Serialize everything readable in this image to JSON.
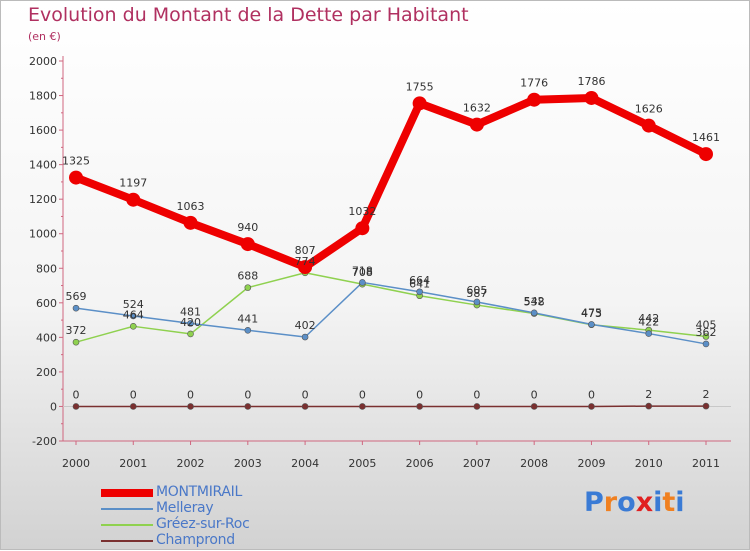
{
  "title": "Evolution du Montant de la Dette par Habitant",
  "subtitle": "(en €)",
  "logo": {
    "text": "Proxiti",
    "letter_colors": [
      "#3a7bd5",
      "#f08020",
      "#3a7bd5",
      "#e02020",
      "#3a7bd5",
      "#f08020",
      "#3a7bd5"
    ]
  },
  "chart_data": {
    "type": "line",
    "title": "Evolution du Montant de la Dette par Habitant",
    "ylabel": "(en €)",
    "xlabel": "",
    "categories": [
      "2000",
      "2001",
      "2002",
      "2003",
      "2004",
      "2005",
      "2006",
      "2007",
      "2008",
      "2009",
      "2010",
      "2011"
    ],
    "ylim": [
      -200,
      2000
    ],
    "yticks": [
      -200,
      0,
      200,
      400,
      600,
      800,
      1000,
      1200,
      1400,
      1600,
      1800,
      2000
    ],
    "series": [
      {
        "name": "MONTMIRAIL",
        "color": "#ee0000",
        "values": [
          1325,
          1197,
          1063,
          940,
          807,
          1032,
          1755,
          1632,
          1776,
          1786,
          1626,
          1461
        ]
      },
      {
        "name": "Melleray",
        "color": "#5b8fc7",
        "values": [
          569,
          524,
          481,
          441,
          402,
          718,
          664,
          605,
          542,
          475,
          422,
          362
        ]
      },
      {
        "name": "Gréez-sur-Roc",
        "color": "#8fd14f",
        "values": [
          372,
          464,
          420,
          688,
          774,
          708,
          641,
          587,
          538,
          473,
          442,
          405
        ]
      },
      {
        "name": "Champrond",
        "color": "#7a3030",
        "values": [
          0,
          0,
          0,
          0,
          0,
          0,
          0,
          0,
          0,
          0,
          2,
          2
        ]
      }
    ],
    "labeled_series": [
      "MONTMIRAIL",
      "Melleray",
      "Gréez-sur-Roc",
      "Champrond"
    ],
    "legend_position": "bottom-left"
  }
}
